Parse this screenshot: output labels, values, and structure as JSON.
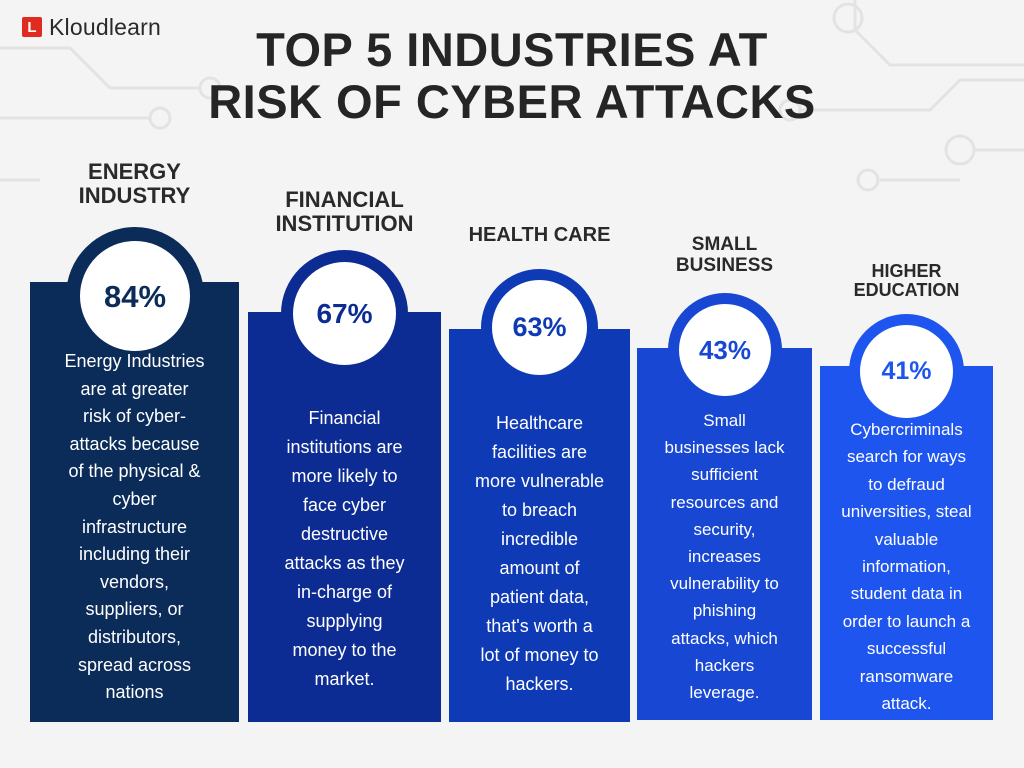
{
  "brand": {
    "mark": "L",
    "name": "Kloudlearn",
    "mark_color": "#e02b20"
  },
  "title_lines": [
    "TOP 5 INDUSTRIES AT",
    "RISK OF CYBER ATTACKS"
  ],
  "colors": {
    "background": "#f4f4f4",
    "circuit": "#e3e3e3",
    "heading": "#252525"
  },
  "industries": [
    {
      "label_lines": [
        "ENERGY",
        "INDUSTRY"
      ],
      "percent": "84%",
      "value": 84,
      "color": "#0b2c59",
      "description_lines": [
        "Energy Industries",
        "are at greater",
        "risk of cyber-",
        "attacks because",
        "of the physical &",
        "cyber",
        "infrastructure",
        "including their",
        "vendors,",
        "suppliers, or",
        "distributors,",
        "spread across",
        "nations"
      ]
    },
    {
      "label_lines": [
        "FINANCIAL",
        "INSTITUTION"
      ],
      "percent": "67%",
      "value": 67,
      "color": "#0d2c93",
      "description_lines": [
        "Financial",
        "institutions are",
        "more likely to",
        "face cyber",
        "destructive",
        "attacks as they",
        "in-charge of",
        "supplying",
        "money to the",
        "market."
      ]
    },
    {
      "label_lines": [
        "HEALTH CARE"
      ],
      "percent": "63%",
      "value": 63,
      "color": "#0f3ab6",
      "description_lines": [
        "Healthcare",
        "facilities are",
        "more vulnerable",
        "to breach",
        "incredible",
        "amount of",
        "patient data,",
        "that's worth a",
        "lot of money to",
        "hackers."
      ]
    },
    {
      "label_lines": [
        "SMALL",
        "BUSINESS"
      ],
      "percent": "43%",
      "value": 43,
      "color": "#1747d3",
      "description_lines": [
        "Small",
        "businesses lack",
        "sufficient",
        "resources and",
        "security,",
        "increases",
        "vulnerability to",
        "phishing",
        "attacks, which",
        "hackers",
        "leverage."
      ]
    },
    {
      "label_lines": [
        "HIGHER",
        "EDUCATION"
      ],
      "percent": "41%",
      "value": 41,
      "color": "#1e55ee",
      "description_lines": [
        "Cybercriminals",
        "search for ways",
        "to defraud",
        "universities, steal",
        "valuable",
        "information,",
        "student data in",
        "order to launch a",
        "successful",
        "ransomware",
        "attack."
      ]
    }
  ]
}
